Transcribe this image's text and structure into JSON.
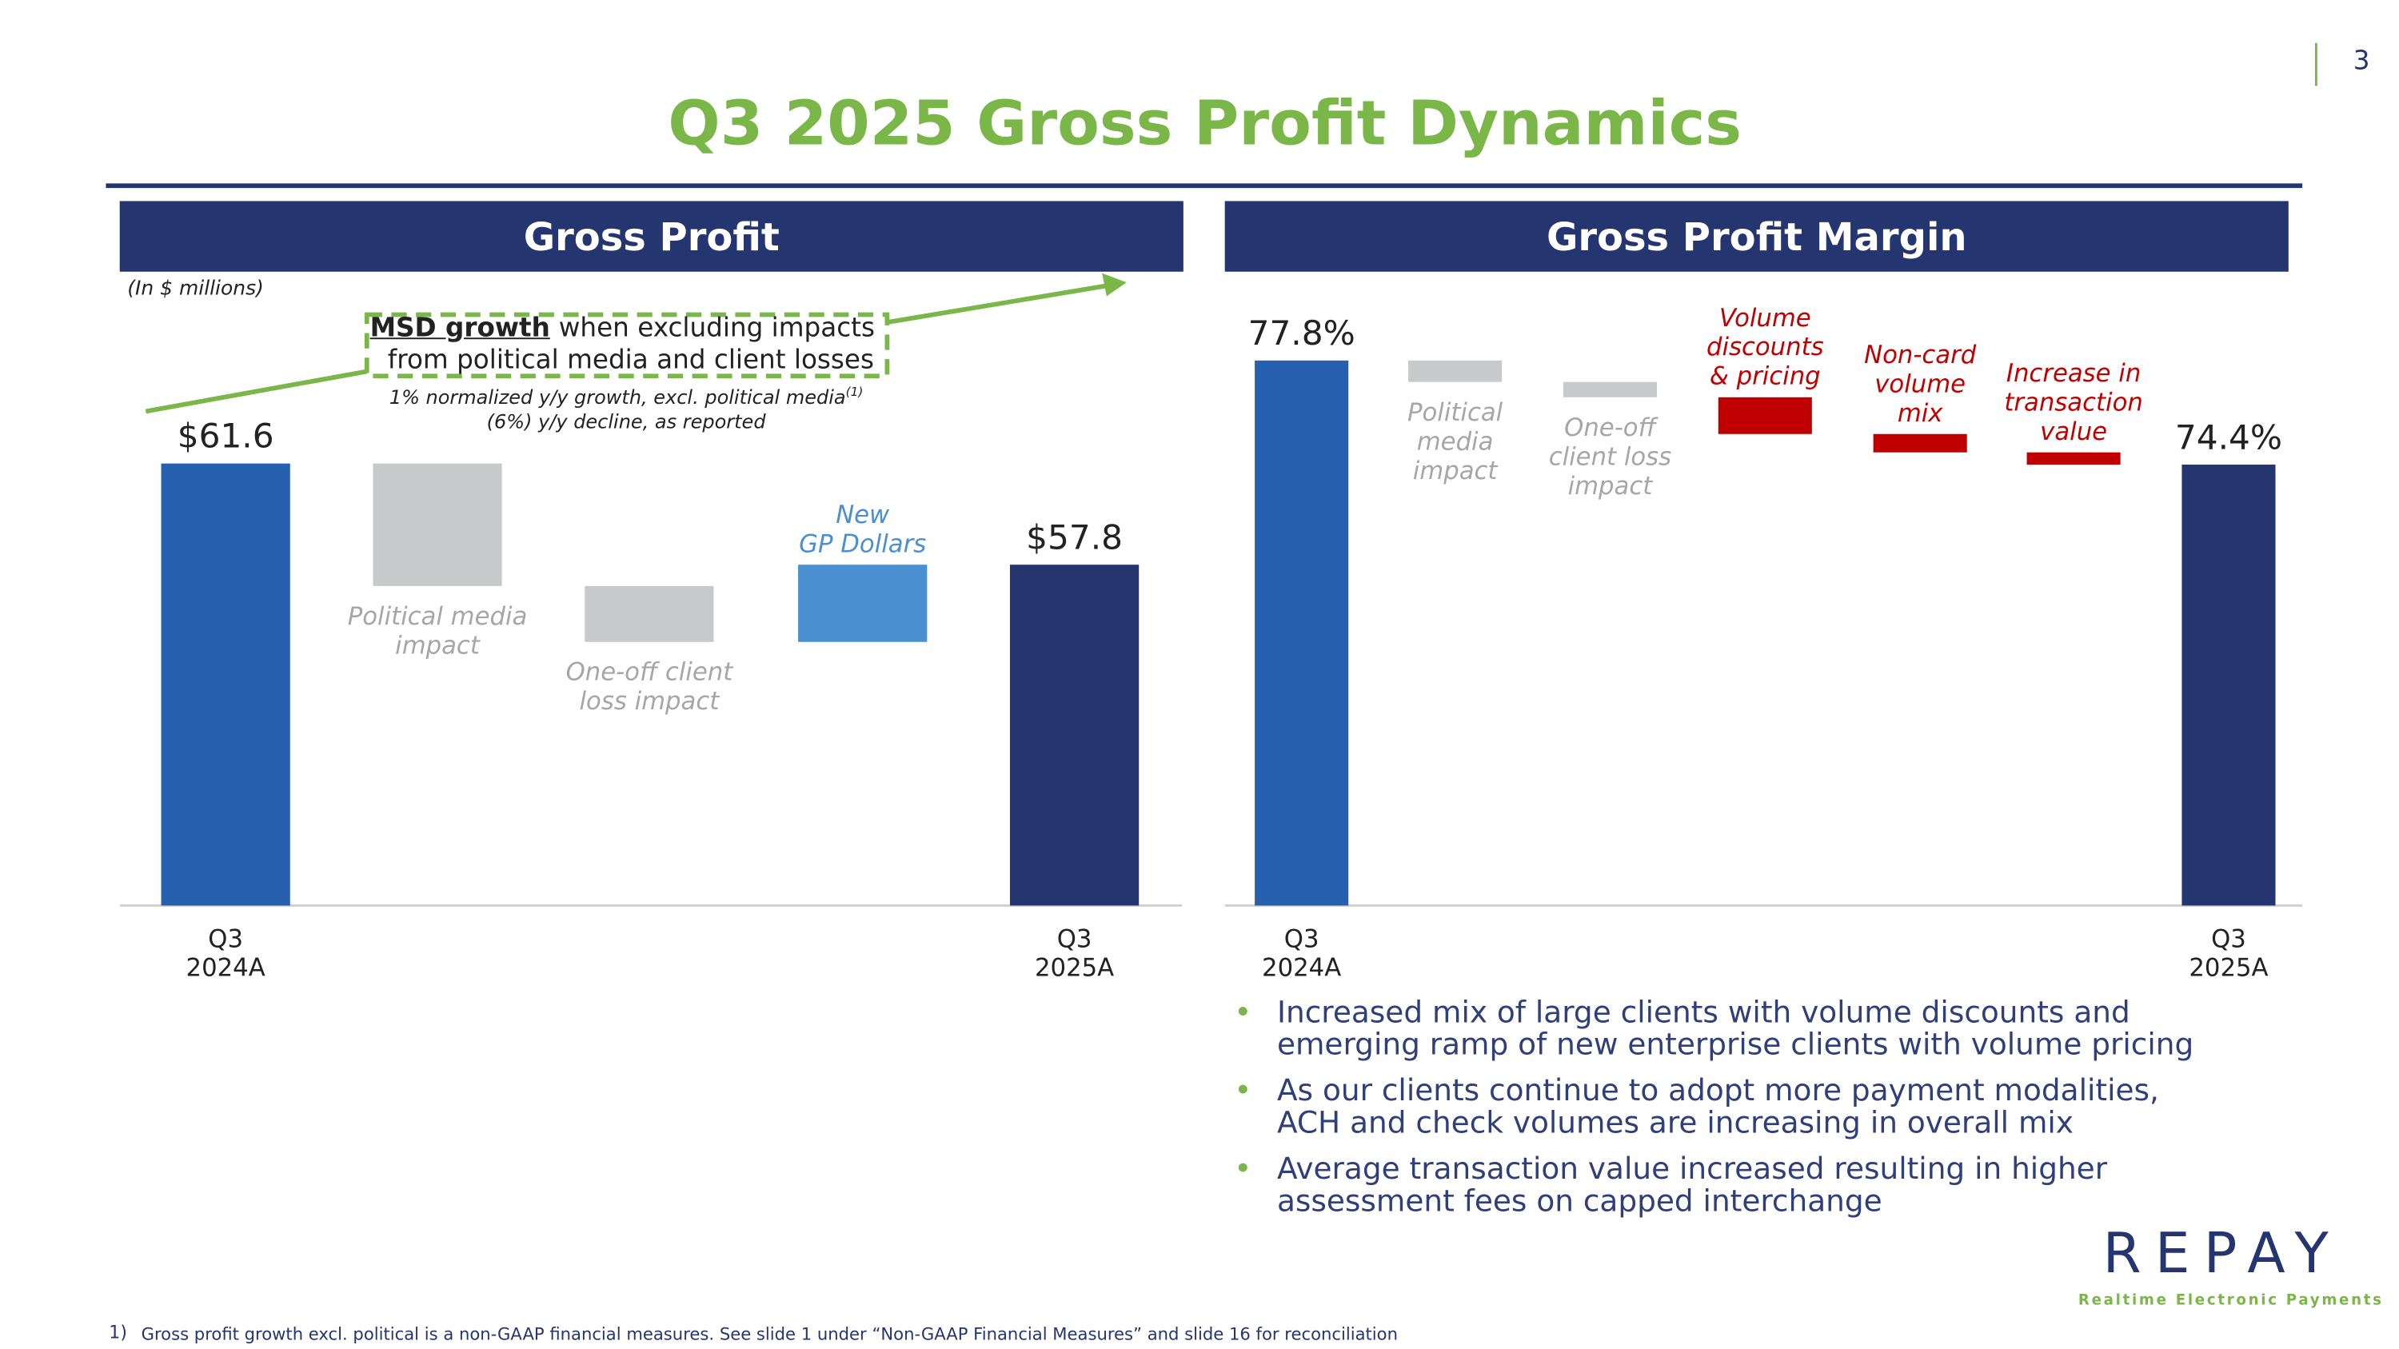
{
  "page_number": "3",
  "title": "Q3 2025 Gross Profit Dynamics",
  "chart_data": [
    {
      "type": "waterfall",
      "title": "Gross Profit",
      "subtitle": "(In $ millions)",
      "categories": [
        "Q3\n2024A",
        "Political media\nimpact",
        "One-off client\nloss impact",
        "New\nGP Dollars",
        "Q3\n2025A"
      ],
      "measure": [
        "absolute",
        "relative",
        "relative",
        "relative",
        "absolute"
      ],
      "values": [
        61.6,
        -4.6,
        -2.1,
        2.9,
        57.8
      ],
      "value_labels": [
        "$61.6",
        null,
        null,
        null,
        "$57.8"
      ],
      "colors": [
        "#2660ae",
        "#c8c9cb",
        "#c8c9cb",
        "#4a8fcf",
        "#253570"
      ],
      "category_label_position": [
        "axis",
        "below",
        "below",
        "above",
        "axis"
      ],
      "ylim": [
        45,
        65
      ],
      "annotation": {
        "emphasis": "MSD growth",
        "text": " when excluding impacts\nfrom political media and client losses",
        "notes": [
          "1% normalized y/y growth, excl. political media",
          "(6%) y/y decline, as reported"
        ],
        "note_marker": "(1)"
      }
    },
    {
      "type": "waterfall",
      "title": "Gross Profit Margin",
      "categories": [
        "Q3\n2024A",
        "Political\nmedia\nimpact",
        "One-off\nclient loss\nimpact",
        "Volume\ndiscounts\n& pricing",
        "Non-card\nvolume\nmix",
        "Increase in\ntransaction\nvalue",
        "Q3\n2025A"
      ],
      "measure": [
        "absolute",
        "relative",
        "relative",
        "relative",
        "relative",
        "relative",
        "absolute"
      ],
      "values": [
        77.8,
        -0.7,
        -0.5,
        -1.2,
        -0.6,
        -0.4,
        74.4
      ],
      "value_labels": [
        "77.8%",
        null,
        null,
        null,
        null,
        null,
        "74.4%"
      ],
      "colors": [
        "#2660ae",
        "#c8c9cb",
        "#c8c9cb",
        "#c00000",
        "#c00000",
        "#c00000",
        "#253570"
      ],
      "category_label_position": [
        "axis",
        "below",
        "below",
        "above",
        "above",
        "above",
        "axis"
      ],
      "ylim": [
        60,
        80
      ]
    }
  ],
  "bullets": [
    "Increased mix of large clients with volume discounts and\nemerging ramp of new enterprise clients with volume pricing",
    "As our clients continue to adopt more payment modalities,\nACH and check volumes are increasing in overall mix",
    "Average transaction value increased resulting in higher\nassessment fees on capped interchange"
  ],
  "logo": {
    "name": "REPAY",
    "tagline": "Realtime Electronic Payments"
  },
  "footnote": {
    "marker": "1)",
    "text": "Gross profit growth excl. political is a non-GAAP financial measures.  See slide 1 under “Non-GAAP Financial Measures” and slide 16 for reconciliation"
  }
}
